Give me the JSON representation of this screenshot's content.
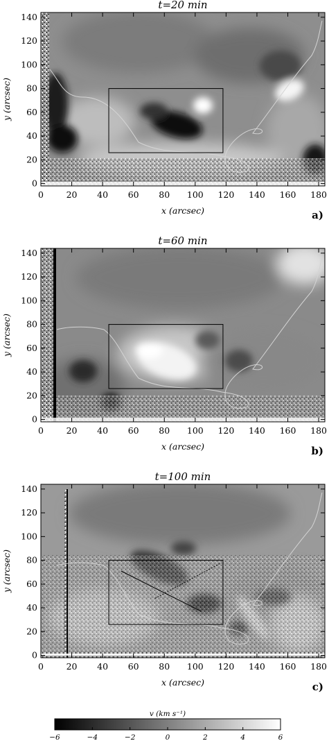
{
  "figure": {
    "panels": [
      {
        "title": "t=20 min",
        "label": "a)"
      },
      {
        "title": "t=60 min",
        "label": "b)"
      },
      {
        "title": "t=100 min",
        "label": "c)"
      }
    ],
    "x_axis": {
      "label": "x (arcsec)",
      "ticks": [
        "0",
        "20",
        "40",
        "60",
        "80",
        "100",
        "120",
        "140",
        "160",
        "180"
      ],
      "range": [
        0,
        184
      ]
    },
    "y_axis": {
      "label": "y (arcsec)",
      "ticks": [
        "0",
        "20",
        "40",
        "60",
        "80",
        "100",
        "120",
        "140"
      ],
      "range": [
        -2,
        144
      ]
    },
    "box_region": {
      "x": [
        44,
        118
      ],
      "y": [
        26,
        80
      ]
    },
    "slits": [
      {
        "panel": "c)",
        "style": "solid",
        "from": [
          52,
          71
        ],
        "to": [
          104,
          37
        ]
      },
      {
        "panel": "c)",
        "style": "dashed",
        "from": [
          74,
          48
        ],
        "to": [
          117,
          78
        ]
      }
    ],
    "colorbar": {
      "label": "v (km s⁻¹)",
      "ticks": [
        "−6",
        "−4",
        "−2",
        "0",
        "2",
        "4",
        "6"
      ],
      "range": [
        -6,
        6
      ],
      "colormap": "grayscale, black = −6, white = 6"
    }
  }
}
